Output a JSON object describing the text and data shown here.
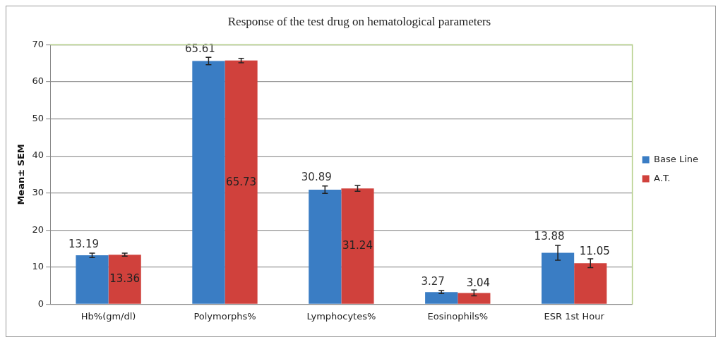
{
  "chart_data": {
    "type": "bar",
    "title": "Response of the test drug on hematological parameters",
    "ylabel": "Mean± SEM",
    "categories": [
      "Hb%(gm/dl)",
      "Polymorphs%",
      "Lymphocytes%",
      "Eosinophils%",
      "ESR 1st Hour"
    ],
    "series": [
      {
        "name": "Base Line",
        "color": "#3a7dc4",
        "values": [
          13.19,
          65.61,
          30.89,
          3.27,
          13.88
        ],
        "errors": [
          0.6,
          1.0,
          1.0,
          0.4,
          2.0
        ]
      },
      {
        "name": "A.T.",
        "color": "#d0413c",
        "values": [
          13.36,
          65.73,
          31.24,
          3.04,
          11.05
        ],
        "errors": [
          0.4,
          0.6,
          0.8,
          0.8,
          1.2
        ]
      }
    ],
    "ylim": [
      0,
      70
    ],
    "yticks": [
      0,
      10,
      20,
      30,
      40,
      50,
      60,
      70
    ],
    "grid": "y",
    "legend": "right",
    "data_labels": true
  }
}
